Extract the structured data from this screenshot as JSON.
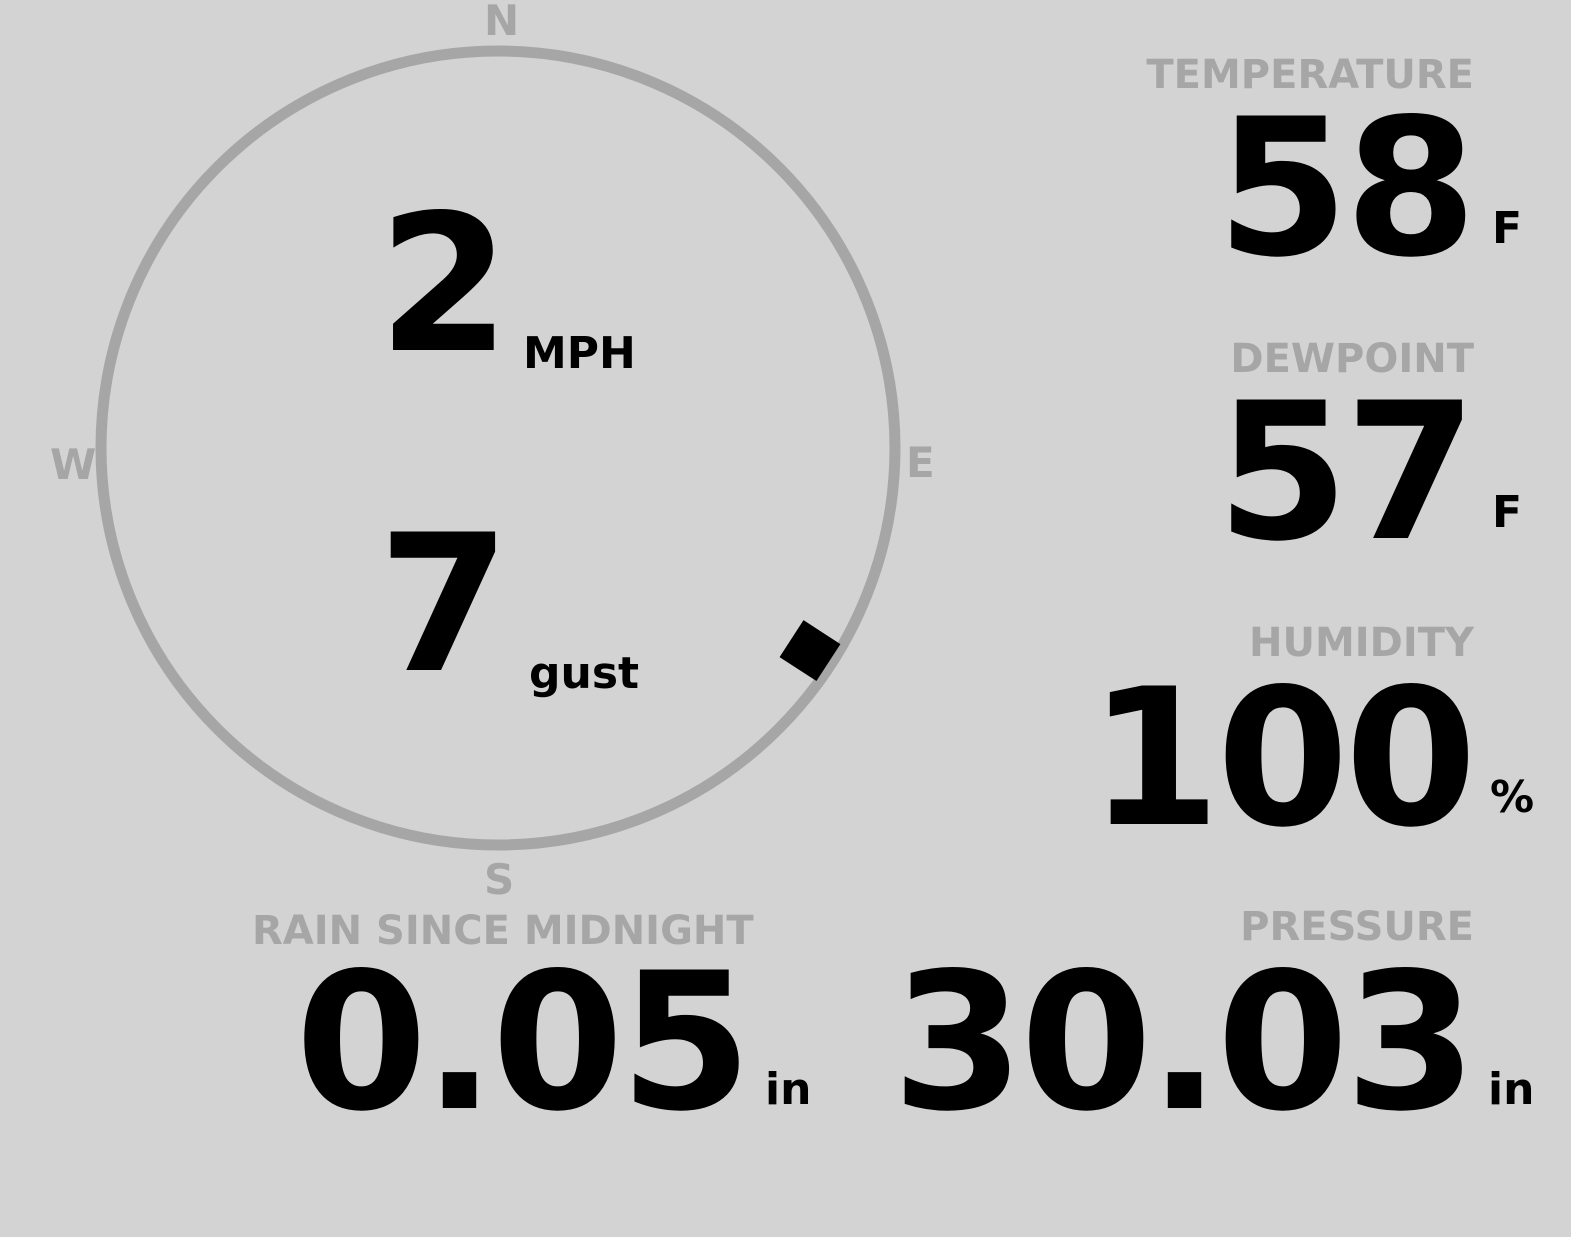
{
  "wind": {
    "speed": "2",
    "speed_unit": "MPH",
    "gust": "7",
    "gust_label": "gust",
    "direction_deg": 123,
    "compass": {
      "n": "N",
      "e": "E",
      "s": "S",
      "w": "W"
    }
  },
  "temperature": {
    "label": "TEMPERATURE",
    "value": "58",
    "unit": "F"
  },
  "dewpoint": {
    "label": "DEWPOINT",
    "value": "57",
    "unit": "F"
  },
  "humidity": {
    "label": "HUMIDITY",
    "value": "100",
    "unit": "%"
  },
  "rain": {
    "label": "RAIN SINCE MIDNIGHT",
    "value": "0.05",
    "unit": "in"
  },
  "pressure": {
    "label": "PRESSURE",
    "value": "30.03",
    "unit": "in"
  },
  "colors": {
    "background": "#d3d3d3",
    "label": "#a6a6a6",
    "value": "#000000"
  }
}
